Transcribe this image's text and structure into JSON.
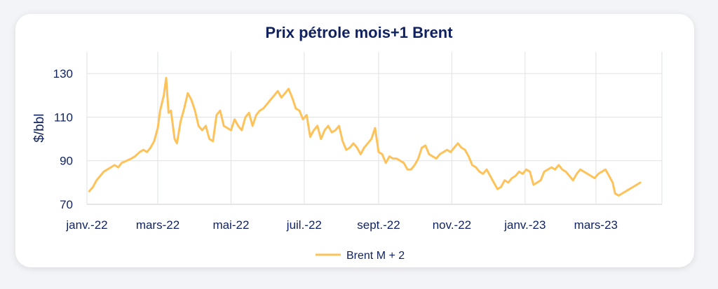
{
  "chart_data": {
    "type": "line",
    "title": "Prix pétrole mois+1 Brent",
    "ylabel": "$/bbl",
    "xlabel": "",
    "ylim": [
      70,
      140
    ],
    "yticks": [
      70,
      90,
      110,
      130
    ],
    "xlim": [
      "2022-01-01",
      "2023-04-25"
    ],
    "xticks": [
      {
        "date": "2022-01-01",
        "label": "janv.-22"
      },
      {
        "date": "2022-03-01",
        "label": "mars-22"
      },
      {
        "date": "2022-05-01",
        "label": "mai-22"
      },
      {
        "date": "2022-07-01",
        "label": "juil.-22"
      },
      {
        "date": "2022-09-01",
        "label": "sept.-22"
      },
      {
        "date": "2022-11-01",
        "label": "nov.-22"
      },
      {
        "date": "2023-01-01",
        "label": "janv.-23"
      },
      {
        "date": "2023-03-01",
        "label": "mars-23"
      }
    ],
    "grid": true,
    "legend_position": "bottom",
    "series": [
      {
        "name": "Brent M + 2",
        "color": "#fdc35a",
        "points": [
          [
            "2022-01-03",
            76
          ],
          [
            "2022-01-06",
            78
          ],
          [
            "2022-01-09",
            81
          ],
          [
            "2022-01-12",
            83
          ],
          [
            "2022-01-15",
            85
          ],
          [
            "2022-01-18",
            86
          ],
          [
            "2022-01-21",
            87
          ],
          [
            "2022-01-24",
            88
          ],
          [
            "2022-01-27",
            87
          ],
          [
            "2022-01-30",
            89
          ],
          [
            "2022-02-03",
            90
          ],
          [
            "2022-02-07",
            91
          ],
          [
            "2022-02-10",
            92
          ],
          [
            "2022-02-14",
            94
          ],
          [
            "2022-02-17",
            95
          ],
          [
            "2022-02-20",
            94
          ],
          [
            "2022-02-23",
            96
          ],
          [
            "2022-02-26",
            99
          ],
          [
            "2022-03-01",
            105
          ],
          [
            "2022-03-03",
            113
          ],
          [
            "2022-03-06",
            120
          ],
          [
            "2022-03-08",
            128
          ],
          [
            "2022-03-10",
            112
          ],
          [
            "2022-03-12",
            113
          ],
          [
            "2022-03-15",
            100
          ],
          [
            "2022-03-17",
            98
          ],
          [
            "2022-03-20",
            108
          ],
          [
            "2022-03-23",
            114
          ],
          [
            "2022-03-26",
            121
          ],
          [
            "2022-03-29",
            118
          ],
          [
            "2022-04-01",
            113
          ],
          [
            "2022-04-04",
            106
          ],
          [
            "2022-04-07",
            104
          ],
          [
            "2022-04-10",
            106
          ],
          [
            "2022-04-13",
            100
          ],
          [
            "2022-04-16",
            99
          ],
          [
            "2022-04-19",
            111
          ],
          [
            "2022-04-22",
            113
          ],
          [
            "2022-04-25",
            106
          ],
          [
            "2022-04-28",
            105
          ],
          [
            "2022-05-01",
            104
          ],
          [
            "2022-05-04",
            109
          ],
          [
            "2022-05-07",
            106
          ],
          [
            "2022-05-10",
            104
          ],
          [
            "2022-05-13",
            110
          ],
          [
            "2022-05-16",
            112
          ],
          [
            "2022-05-19",
            106
          ],
          [
            "2022-05-22",
            111
          ],
          [
            "2022-05-25",
            113
          ],
          [
            "2022-05-28",
            114
          ],
          [
            "2022-05-31",
            116
          ],
          [
            "2022-06-03",
            118
          ],
          [
            "2022-06-06",
            120
          ],
          [
            "2022-06-09",
            122
          ],
          [
            "2022-06-12",
            119
          ],
          [
            "2022-06-15",
            121
          ],
          [
            "2022-06-18",
            123
          ],
          [
            "2022-06-21",
            119
          ],
          [
            "2022-06-24",
            114
          ],
          [
            "2022-06-27",
            113
          ],
          [
            "2022-06-30",
            109
          ],
          [
            "2022-07-03",
            111
          ],
          [
            "2022-07-06",
            101
          ],
          [
            "2022-07-09",
            104
          ],
          [
            "2022-07-12",
            106
          ],
          [
            "2022-07-15",
            100
          ],
          [
            "2022-07-18",
            104
          ],
          [
            "2022-07-21",
            106
          ],
          [
            "2022-07-24",
            103
          ],
          [
            "2022-07-27",
            104
          ],
          [
            "2022-07-30",
            106
          ],
          [
            "2022-08-02",
            99
          ],
          [
            "2022-08-05",
            95
          ],
          [
            "2022-08-08",
            96
          ],
          [
            "2022-08-11",
            98
          ],
          [
            "2022-08-14",
            96
          ],
          [
            "2022-08-17",
            93
          ],
          [
            "2022-08-20",
            96
          ],
          [
            "2022-08-23",
            98
          ],
          [
            "2022-08-26",
            100
          ],
          [
            "2022-08-29",
            105
          ],
          [
            "2022-09-01",
            94
          ],
          [
            "2022-09-04",
            93
          ],
          [
            "2022-09-07",
            89
          ],
          [
            "2022-09-10",
            92
          ],
          [
            "2022-09-13",
            91
          ],
          [
            "2022-09-16",
            91
          ],
          [
            "2022-09-19",
            90
          ],
          [
            "2022-09-22",
            89
          ],
          [
            "2022-09-25",
            86
          ],
          [
            "2022-09-28",
            86
          ],
          [
            "2022-10-01",
            88
          ],
          [
            "2022-10-04",
            91
          ],
          [
            "2022-10-07",
            96
          ],
          [
            "2022-10-10",
            97
          ],
          [
            "2022-10-13",
            93
          ],
          [
            "2022-10-16",
            92
          ],
          [
            "2022-10-19",
            91
          ],
          [
            "2022-10-22",
            93
          ],
          [
            "2022-10-25",
            94
          ],
          [
            "2022-10-28",
            95
          ],
          [
            "2022-10-31",
            94
          ],
          [
            "2022-11-03",
            96
          ],
          [
            "2022-11-06",
            98
          ],
          [
            "2022-11-09",
            96
          ],
          [
            "2022-11-12",
            95
          ],
          [
            "2022-11-15",
            92
          ],
          [
            "2022-11-18",
            88
          ],
          [
            "2022-11-21",
            87
          ],
          [
            "2022-11-24",
            85
          ],
          [
            "2022-11-27",
            84
          ],
          [
            "2022-11-30",
            86
          ],
          [
            "2022-12-03",
            83
          ],
          [
            "2022-12-06",
            80
          ],
          [
            "2022-12-09",
            77
          ],
          [
            "2022-12-12",
            78
          ],
          [
            "2022-12-15",
            81
          ],
          [
            "2022-12-18",
            80
          ],
          [
            "2022-12-21",
            82
          ],
          [
            "2022-12-24",
            83
          ],
          [
            "2022-12-27",
            85
          ],
          [
            "2022-12-30",
            84
          ],
          [
            "2023-01-02",
            86
          ],
          [
            "2023-01-05",
            85
          ],
          [
            "2023-01-08",
            79
          ],
          [
            "2023-01-11",
            80
          ],
          [
            "2023-01-14",
            81
          ],
          [
            "2023-01-17",
            85
          ],
          [
            "2023-01-20",
            86
          ],
          [
            "2023-01-23",
            87
          ],
          [
            "2023-01-26",
            86
          ],
          [
            "2023-01-29",
            88
          ],
          [
            "2023-02-01",
            86
          ],
          [
            "2023-02-04",
            85
          ],
          [
            "2023-02-07",
            83
          ],
          [
            "2023-02-10",
            81
          ],
          [
            "2023-02-13",
            84
          ],
          [
            "2023-02-16",
            86
          ],
          [
            "2023-02-19",
            85
          ],
          [
            "2023-02-22",
            84
          ],
          [
            "2023-02-25",
            83
          ],
          [
            "2023-02-28",
            82
          ],
          [
            "2023-03-03",
            84
          ],
          [
            "2023-03-06",
            85
          ],
          [
            "2023-03-09",
            86
          ],
          [
            "2023-03-12",
            83
          ],
          [
            "2023-03-15",
            80
          ],
          [
            "2023-03-17",
            75
          ],
          [
            "2023-03-20",
            74
          ],
          [
            "2023-03-23",
            75
          ],
          [
            "2023-03-26",
            76
          ],
          [
            "2023-03-29",
            77
          ],
          [
            "2023-04-01",
            78
          ],
          [
            "2023-04-04",
            79
          ],
          [
            "2023-04-07",
            80
          ]
        ]
      }
    ]
  }
}
